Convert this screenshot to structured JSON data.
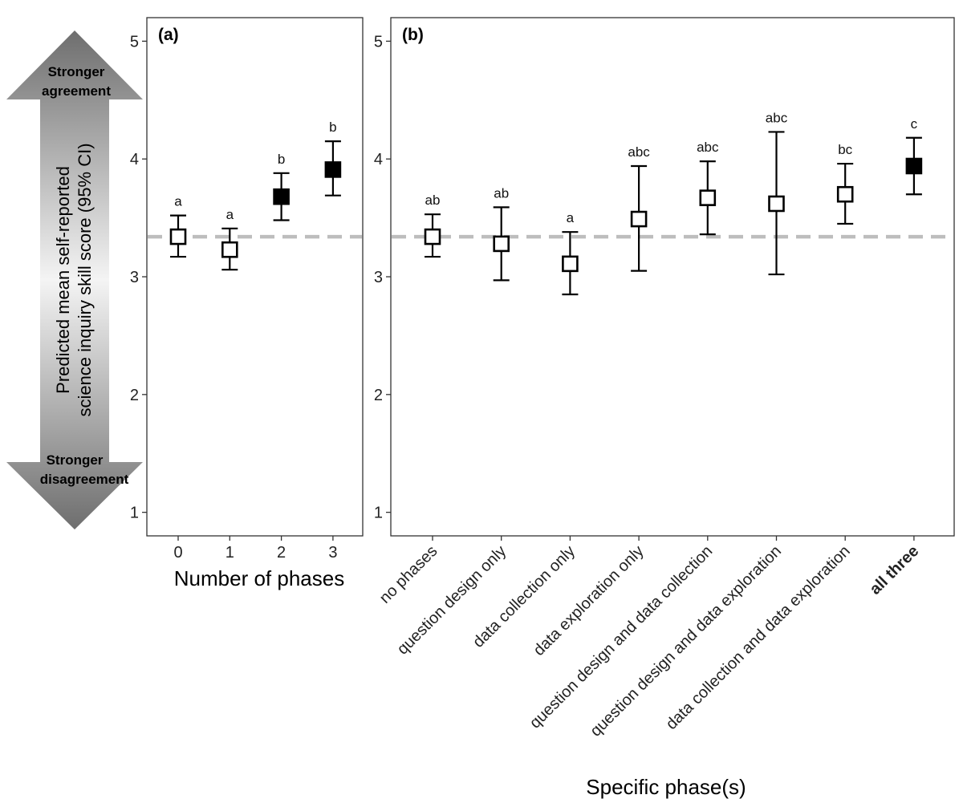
{
  "figure": {
    "ylabel_line1": "Predicted mean self-reported",
    "ylabel_line2": "science inquiry skill score (95% CI)",
    "arrow_top_line1": "Stronger",
    "arrow_top_line2": "agreement",
    "arrow_bottom_line1": "Stronger",
    "arrow_bottom_line2": "disagreement",
    "colors": {
      "reference_line": "#bdbdbd",
      "filled_marker": "#000000",
      "open_marker": "#ffffff",
      "arrow_light": "#f4f4f4",
      "arrow_dark": "#6e6e6e"
    }
  },
  "chart_data": [
    {
      "type": "scatter",
      "panel": "(a)",
      "xlabel": "Number of phases",
      "ylabel": "Predicted mean self-reported science inquiry skill score (95% CI)",
      "ylim": [
        0.8,
        5.2
      ],
      "yticks": [
        1,
        2,
        3,
        4,
        5
      ],
      "reference_line": 3.34,
      "categories": [
        "0",
        "1",
        "2",
        "3"
      ],
      "points": [
        {
          "category": "0",
          "mean": 3.34,
          "lower": 3.17,
          "upper": 3.52,
          "letter": "a",
          "filled": false
        },
        {
          "category": "1",
          "mean": 3.23,
          "lower": 3.06,
          "upper": 3.41,
          "letter": "a",
          "filled": false
        },
        {
          "category": "2",
          "mean": 3.68,
          "lower": 3.48,
          "upper": 3.88,
          "letter": "b",
          "filled": true
        },
        {
          "category": "3",
          "mean": 3.91,
          "lower": 3.69,
          "upper": 4.15,
          "letter": "b",
          "filled": true
        }
      ]
    },
    {
      "type": "scatter",
      "panel": "(b)",
      "xlabel": "Specific phase(s)",
      "ylabel": "",
      "ylim": [
        0.8,
        5.2
      ],
      "yticks": [
        1,
        2,
        3,
        4,
        5
      ],
      "reference_line": 3.34,
      "categories": [
        "no phases",
        "question design only",
        "data collection only",
        "data exploration only",
        "question design and data collection",
        "question design and data exploration",
        "data collection and data exploration",
        "all three"
      ],
      "bold_category": "all three",
      "points": [
        {
          "category": "no phases",
          "mean": 3.34,
          "lower": 3.17,
          "upper": 3.53,
          "letter": "ab",
          "filled": false
        },
        {
          "category": "question design only",
          "mean": 3.28,
          "lower": 2.97,
          "upper": 3.59,
          "letter": "ab",
          "filled": false
        },
        {
          "category": "data collection only",
          "mean": 3.11,
          "lower": 2.85,
          "upper": 3.38,
          "letter": "a",
          "filled": false
        },
        {
          "category": "data exploration only",
          "mean": 3.49,
          "lower": 3.05,
          "upper": 3.94,
          "letter": "abc",
          "filled": false
        },
        {
          "category": "question design and data collection",
          "mean": 3.67,
          "lower": 3.36,
          "upper": 3.98,
          "letter": "abc",
          "filled": false
        },
        {
          "category": "question design and data exploration",
          "mean": 3.62,
          "lower": 3.02,
          "upper": 4.23,
          "letter": "abc",
          "filled": false
        },
        {
          "category": "data collection and data exploration",
          "mean": 3.7,
          "lower": 3.45,
          "upper": 3.96,
          "letter": "bc",
          "filled": false
        },
        {
          "category": "all three",
          "mean": 3.94,
          "lower": 3.7,
          "upper": 4.18,
          "letter": "c",
          "filled": true
        }
      ]
    }
  ]
}
